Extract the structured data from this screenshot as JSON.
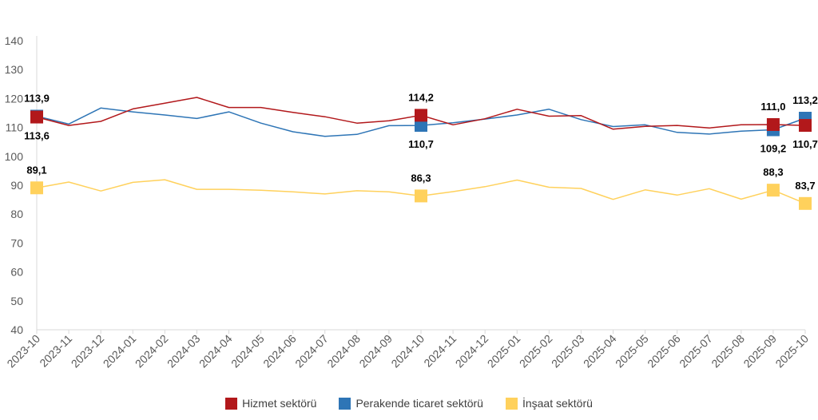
{
  "chart_data": {
    "type": "line",
    "title": "",
    "xlabel": "",
    "ylabel": "",
    "ylim": [
      40,
      140
    ],
    "yticks": [
      "40",
      "50",
      "60",
      "70",
      "80",
      "90",
      "100",
      "110",
      "120",
      "130",
      "140"
    ],
    "grid": false,
    "legend_position": "bottom",
    "categories": [
      "2023-10",
      "2023-11",
      "2023-12",
      "2024-01",
      "2024-02",
      "2024-03",
      "2024-04",
      "2024-05",
      "2024-06",
      "2024-07",
      "2024-08",
      "2024-09",
      "2024-10",
      "2024-11",
      "2024-12",
      "2025-01",
      "2025-02",
      "2025-03",
      "2025-04",
      "2025-05",
      "2025-06",
      "2025-07",
      "2025-08",
      "2025-09",
      "2025-10"
    ],
    "series": [
      {
        "name": "Hizmet sektörü",
        "color": "#b2181b",
        "values": [
          113.6,
          110.7,
          112.1,
          116.4,
          118.4,
          120.4,
          116.9,
          116.9,
          115.2,
          113.7,
          111.5,
          112.3,
          114.2,
          110.9,
          113.0,
          116.3,
          113.9,
          114.1,
          109.4,
          110.4,
          110.7,
          109.8,
          110.9,
          111.0,
          110.7
        ],
        "labels": [
          {
            "index": 0,
            "text": "113,6",
            "pos": "below"
          },
          {
            "index": 12,
            "text": "114,2",
            "pos": "above"
          },
          {
            "index": 23,
            "text": "111,0",
            "pos": "above"
          },
          {
            "index": 24,
            "text": "110,7",
            "pos": "below"
          }
        ]
      },
      {
        "name": "Perakende ticaret sektörü",
        "color": "#2e75b6",
        "values": [
          113.9,
          111.2,
          116.7,
          115.4,
          114.3,
          113.1,
          115.4,
          111.5,
          108.5,
          106.9,
          107.6,
          110.6,
          110.7,
          111.6,
          112.9,
          114.3,
          116.3,
          112.7,
          110.3,
          110.9,
          108.3,
          107.7,
          108.7,
          109.2,
          113.2
        ],
        "labels": [
          {
            "index": 0,
            "text": "113,9",
            "pos": "above"
          },
          {
            "index": 12,
            "text": "110,7",
            "pos": "below"
          },
          {
            "index": 23,
            "text": "109,2",
            "pos": "below"
          },
          {
            "index": 24,
            "text": "113,2",
            "pos": "above"
          }
        ]
      },
      {
        "name": "İnşaat sektörü",
        "color": "#ffd15c",
        "values": [
          89.1,
          91.1,
          88.0,
          91.0,
          91.9,
          88.6,
          88.6,
          88.3,
          87.7,
          87.0,
          88.1,
          87.7,
          86.3,
          87.8,
          89.5,
          91.8,
          89.3,
          88.9,
          85.1,
          88.4,
          86.6,
          88.8,
          85.2,
          88.3,
          83.7
        ],
        "labels": [
          {
            "index": 0,
            "text": "89,1",
            "pos": "above"
          },
          {
            "index": 12,
            "text": "86,3",
            "pos": "above"
          },
          {
            "index": 23,
            "text": "88,3",
            "pos": "above"
          },
          {
            "index": 24,
            "text": "83,7",
            "pos": "above"
          }
        ]
      }
    ],
    "markers": [
      0,
      12,
      23,
      24
    ]
  }
}
